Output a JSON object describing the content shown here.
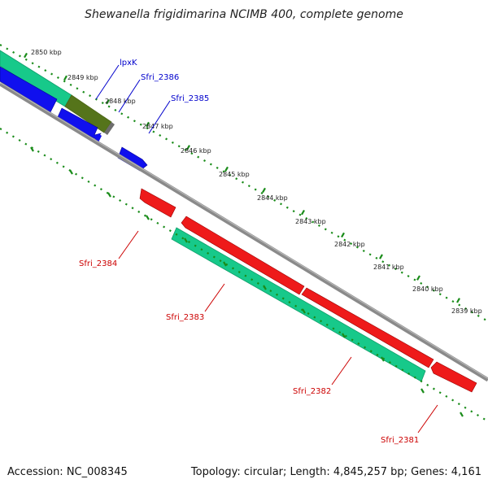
{
  "title": "Shewanella frigidimarina NCIMB 400, complete genome",
  "footer": {
    "accession": "Accession: NC_008345",
    "summary": "Topology: circular; Length: 4,845,257 bp; Genes: 4,161"
  },
  "colors": {
    "background": "#ffffff",
    "backbone": "#808080",
    "tick": "#1a8c1a",
    "forward_cds": "#0000ee",
    "reverse_cds": "#ee0000",
    "gene": "#2ee8a6",
    "overlap_gene": "#6b8c1f",
    "label_forward": "#0000cc",
    "label_reverse": "#cc0000"
  },
  "scale_labels": [
    "2850 kbp",
    "2849 kbp",
    "2848 kbp",
    "2847 kbp",
    "2846 kbp",
    "2845 kbp",
    "2844 kbp",
    "2843 kbp",
    "2842 kbp",
    "2841 kbp",
    "2840 kbp",
    "2839 kbp"
  ],
  "gene_labels": [
    {
      "id": "lpxK",
      "text": "lpxK",
      "strand": "forward"
    },
    {
      "id": "sfri-2386",
      "text": "Sfri_2386",
      "strand": "forward"
    },
    {
      "id": "sfri-2385",
      "text": "Sfri_2385",
      "strand": "forward"
    },
    {
      "id": "sfri-2384",
      "text": "Sfri_2384",
      "strand": "reverse"
    },
    {
      "id": "sfri-2383",
      "text": "Sfri_2383",
      "strand": "reverse"
    },
    {
      "id": "sfri-2382",
      "text": "Sfri_2382",
      "strand": "reverse"
    },
    {
      "id": "sfri-2381",
      "text": "Sfri_2381",
      "strand": "reverse"
    }
  ]
}
